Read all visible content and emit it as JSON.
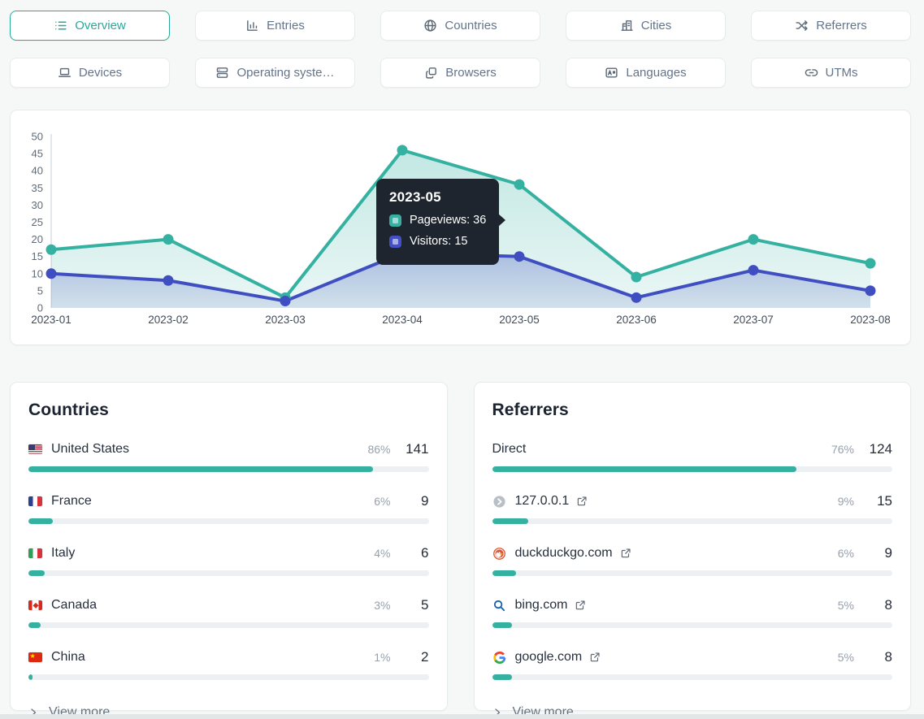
{
  "colors": {
    "accent": "#2aa89a",
    "pageviews": "#35b1a2",
    "visitors": "#3f4ec0",
    "bar_track": "#edf0f2"
  },
  "tabs": {
    "row1": [
      {
        "id": "overview",
        "label": "Overview",
        "icon": "list-icon",
        "active": true
      },
      {
        "id": "entries",
        "label": "Entries",
        "icon": "bar-chart-icon",
        "active": false
      },
      {
        "id": "countries",
        "label": "Countries",
        "icon": "globe-icon",
        "active": false
      },
      {
        "id": "cities",
        "label": "Cities",
        "icon": "buildings-icon",
        "active": false
      },
      {
        "id": "referrers",
        "label": "Referrers",
        "icon": "shuffle-icon",
        "active": false
      }
    ],
    "row2": [
      {
        "id": "devices",
        "label": "Devices",
        "icon": "laptop-icon",
        "active": false
      },
      {
        "id": "os",
        "label": "Operating syste…",
        "icon": "server-icon",
        "active": false
      },
      {
        "id": "browsers",
        "label": "Browsers",
        "icon": "windows-icon",
        "active": false
      },
      {
        "id": "languages",
        "label": "Languages",
        "icon": "translate-icon",
        "active": false
      },
      {
        "id": "utms",
        "label": "UTMs",
        "icon": "link-icon",
        "active": false
      }
    ]
  },
  "chart_data": {
    "type": "area",
    "x": [
      "2023-01",
      "2023-02",
      "2023-03",
      "2023-04",
      "2023-05",
      "2023-06",
      "2023-07",
      "2023-08"
    ],
    "series": [
      {
        "name": "Pageviews",
        "color": "#35b1a2",
        "values": [
          17,
          20,
          3,
          46,
          36,
          9,
          20,
          13
        ]
      },
      {
        "name": "Visitors",
        "color": "#3f4ec0",
        "values": [
          10,
          8,
          2,
          16,
          15,
          3,
          11,
          5
        ]
      }
    ],
    "ylim": [
      0,
      50
    ],
    "yticks": [
      0,
      5,
      10,
      15,
      20,
      25,
      30,
      35,
      40,
      45,
      50
    ],
    "grid": false,
    "legend": "none",
    "tooltip": {
      "title": "2023-05",
      "entries": [
        {
          "label": "Pageviews",
          "value": 36,
          "color": "#35b1a2"
        },
        {
          "label": "Visitors",
          "value": 15,
          "color": "#4450c5"
        }
      ]
    }
  },
  "countries": {
    "title": "Countries",
    "view_more": "View more",
    "rows": [
      {
        "icon": "flag-us-icon",
        "label": "United States",
        "pct": "86%",
        "pct_value": 86,
        "count": "141",
        "external": false
      },
      {
        "icon": "flag-fr-icon",
        "label": "France",
        "pct": "6%",
        "pct_value": 6,
        "count": "9",
        "external": false
      },
      {
        "icon": "flag-it-icon",
        "label": "Italy",
        "pct": "4%",
        "pct_value": 4,
        "count": "6",
        "external": false
      },
      {
        "icon": "flag-ca-icon",
        "label": "Canada",
        "pct": "3%",
        "pct_value": 3,
        "count": "5",
        "external": false
      },
      {
        "icon": "flag-cn-icon",
        "label": "China",
        "pct": "1%",
        "pct_value": 1,
        "count": "2",
        "external": false
      }
    ]
  },
  "referrers": {
    "title": "Referrers",
    "view_more": "View more",
    "rows": [
      {
        "icon": null,
        "label": "Direct",
        "pct": "76%",
        "pct_value": 76,
        "count": "124",
        "external": false
      },
      {
        "icon": "default-favicon-icon",
        "label": "127.0.0.1",
        "pct": "9%",
        "pct_value": 9,
        "count": "15",
        "external": true
      },
      {
        "icon": "duckduckgo-icon",
        "label": "duckduckgo.com",
        "pct": "6%",
        "pct_value": 6,
        "count": "9",
        "external": true
      },
      {
        "icon": "bing-icon",
        "label": "bing.com",
        "pct": "5%",
        "pct_value": 5,
        "count": "8",
        "external": true
      },
      {
        "icon": "google-icon",
        "label": "google.com",
        "pct": "5%",
        "pct_value": 5,
        "count": "8",
        "external": true
      }
    ]
  }
}
